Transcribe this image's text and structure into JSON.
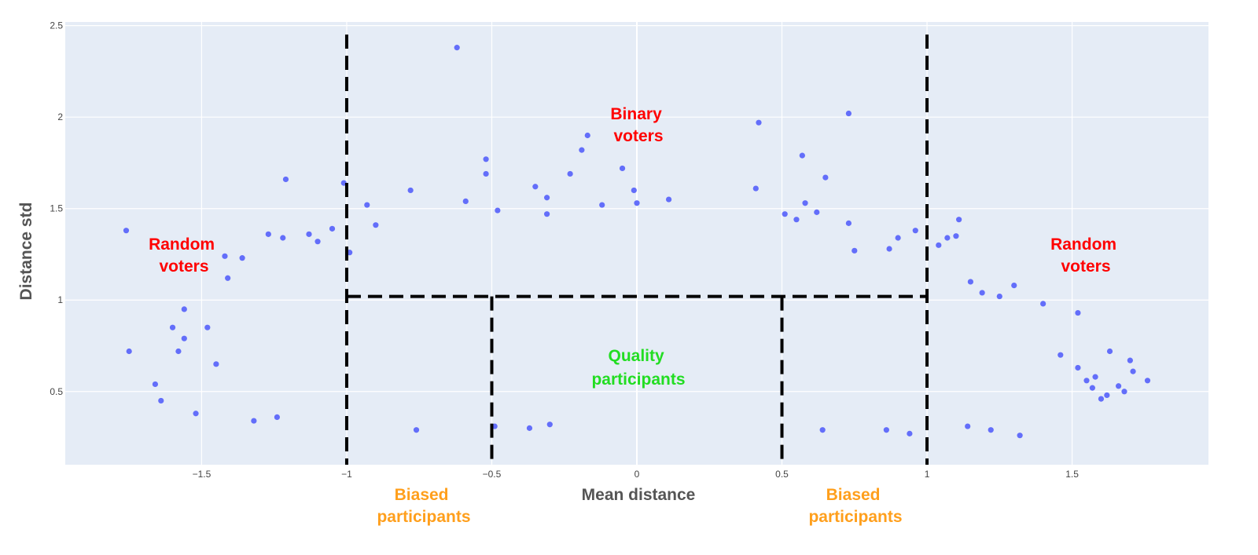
{
  "chart_data": {
    "type": "scatter",
    "xlabel": "Mean distance",
    "ylabel": "Distance std",
    "xlim": [
      -1.97,
      1.97
    ],
    "ylim": [
      0.1,
      2.52
    ],
    "x_ticks": [
      -1.5,
      -1,
      -0.5,
      0,
      0.5,
      1,
      1.5
    ],
    "x_tick_labels": [
      "−1.5",
      "−1",
      "−0.5",
      "0",
      "0.5",
      "1",
      "1.5"
    ],
    "y_ticks": [
      0.5,
      1,
      1.5,
      2,
      2.5
    ],
    "y_tick_labels": [
      "0.5",
      "1",
      "1.5",
      "2",
      "2.5"
    ],
    "grid": true,
    "colors": {
      "plot_bg": "#e5ecf6",
      "grid": "#ffffff",
      "marker": "#636efa",
      "red": "#ff0000",
      "orange": "#ff9f1c",
      "green": "#22dd22"
    },
    "series": [
      {
        "values": [
          [
            -1.76,
            1.38
          ],
          [
            -1.75,
            0.72
          ],
          [
            -1.66,
            0.54
          ],
          [
            -1.64,
            0.45
          ],
          [
            -1.6,
            0.85
          ],
          [
            -1.58,
            0.72
          ],
          [
            -1.56,
            0.95
          ],
          [
            -1.56,
            0.79
          ],
          [
            -1.52,
            0.38
          ],
          [
            -1.48,
            0.85
          ],
          [
            -1.45,
            0.65
          ],
          [
            -1.42,
            1.24
          ],
          [
            -1.41,
            1.12
          ],
          [
            -1.36,
            1.23
          ],
          [
            -1.21,
            1.66
          ],
          [
            -1.27,
            1.36
          ],
          [
            -1.22,
            1.34
          ],
          [
            -1.13,
            1.36
          ],
          [
            -1.1,
            1.32
          ],
          [
            -1.05,
            1.39
          ],
          [
            -1.01,
            1.64
          ],
          [
            -0.99,
            1.26
          ],
          [
            -0.93,
            1.52
          ],
          [
            -0.9,
            1.41
          ],
          [
            -0.78,
            1.6
          ],
          [
            -0.62,
            2.38
          ],
          [
            -0.59,
            1.54
          ],
          [
            -0.52,
            1.77
          ],
          [
            -0.52,
            1.69
          ],
          [
            -0.48,
            1.49
          ],
          [
            -0.35,
            1.62
          ],
          [
            -0.31,
            1.56
          ],
          [
            -0.31,
            1.47
          ],
          [
            -0.23,
            1.69
          ],
          [
            -0.19,
            1.82
          ],
          [
            -0.17,
            1.9
          ],
          [
            -0.12,
            1.52
          ],
          [
            -0.05,
            1.72
          ],
          [
            -0.01,
            1.6
          ],
          [
            0.0,
            1.53
          ],
          [
            0.11,
            1.55
          ],
          [
            0.42,
            1.97
          ],
          [
            0.41,
            1.61
          ],
          [
            0.51,
            1.47
          ],
          [
            0.55,
            1.44
          ],
          [
            0.57,
            1.79
          ],
          [
            0.58,
            1.53
          ],
          [
            0.62,
            1.48
          ],
          [
            0.65,
            1.67
          ],
          [
            0.73,
            2.02
          ],
          [
            0.73,
            1.42
          ],
          [
            0.75,
            1.27
          ],
          [
            0.9,
            1.34
          ],
          [
            0.96,
            1.38
          ],
          [
            0.87,
            1.28
          ],
          [
            1.04,
            1.3
          ],
          [
            1.07,
            1.34
          ],
          [
            1.1,
            1.35
          ],
          [
            1.11,
            1.44
          ],
          [
            1.15,
            1.1
          ],
          [
            1.19,
            1.04
          ],
          [
            1.25,
            1.02
          ],
          [
            1.3,
            1.08
          ],
          [
            1.4,
            0.98
          ],
          [
            1.46,
            0.7
          ],
          [
            1.52,
            0.93
          ],
          [
            1.52,
            0.63
          ],
          [
            1.55,
            0.56
          ],
          [
            1.58,
            0.58
          ],
          [
            1.6,
            0.46
          ],
          [
            1.63,
            0.72
          ],
          [
            1.66,
            0.53
          ],
          [
            1.7,
            0.67
          ],
          [
            1.71,
            0.61
          ],
          [
            1.76,
            0.56
          ],
          [
            1.68,
            0.5
          ],
          [
            1.62,
            0.48
          ],
          [
            1.57,
            0.52
          ],
          [
            1.32,
            0.26
          ],
          [
            1.22,
            0.29
          ],
          [
            1.14,
            0.31
          ],
          [
            0.94,
            0.27
          ],
          [
            0.86,
            0.29
          ],
          [
            0.64,
            0.29
          ],
          [
            -0.3,
            0.32
          ],
          [
            -0.37,
            0.3
          ],
          [
            -0.49,
            0.31
          ],
          [
            -0.76,
            0.29
          ],
          [
            -1.32,
            0.34
          ],
          [
            -1.24,
            0.36
          ]
        ]
      }
    ]
  },
  "regions": {
    "h_threshold": 1.02,
    "v_outer": [
      -1.0,
      1.0
    ],
    "v_inner": [
      -0.5,
      0.5
    ]
  },
  "annotations": {
    "random_voters_left": [
      "Random",
      "voters"
    ],
    "random_voters_right": [
      "Random",
      "voters"
    ],
    "binary_voters": [
      "Binary",
      "voters"
    ],
    "quality_participants": [
      "Quality",
      "participants"
    ],
    "biased_left": [
      "Biased",
      "participants"
    ],
    "biased_right": [
      "Biased",
      "participants"
    ]
  }
}
